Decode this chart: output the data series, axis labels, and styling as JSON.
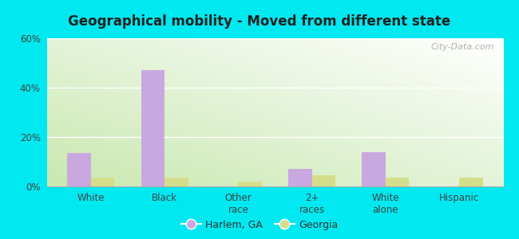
{
  "title": "Geographical mobility - Moved from different state",
  "categories": [
    "White",
    "Black",
    "Other\nrace",
    "2+\nraces",
    "White\nalone",
    "Hispanic"
  ],
  "harlem_values": [
    13.5,
    47.0,
    0.0,
    7.0,
    14.0,
    0.0
  ],
  "georgia_values": [
    3.5,
    3.5,
    2.0,
    4.5,
    3.5,
    3.5
  ],
  "harlem_color": "#c9a8e0",
  "georgia_color": "#d4de8a",
  "ylim": [
    0,
    60
  ],
  "yticks": [
    0,
    20,
    40,
    60
  ],
  "ytick_labels": [
    "0%",
    "20%",
    "40%",
    "60%"
  ],
  "bar_width": 0.32,
  "outer_bg": "#00e8f0",
  "legend_harlem": "Harlem, GA",
  "legend_georgia": "Georgia",
  "watermark": "City-Data.com",
  "plot_bg_top": "#ffffff",
  "plot_bg_bottom": "#cceebb",
  "title_color": "#222222",
  "tick_color": "#444444",
  "grid_color": "#cccccc"
}
